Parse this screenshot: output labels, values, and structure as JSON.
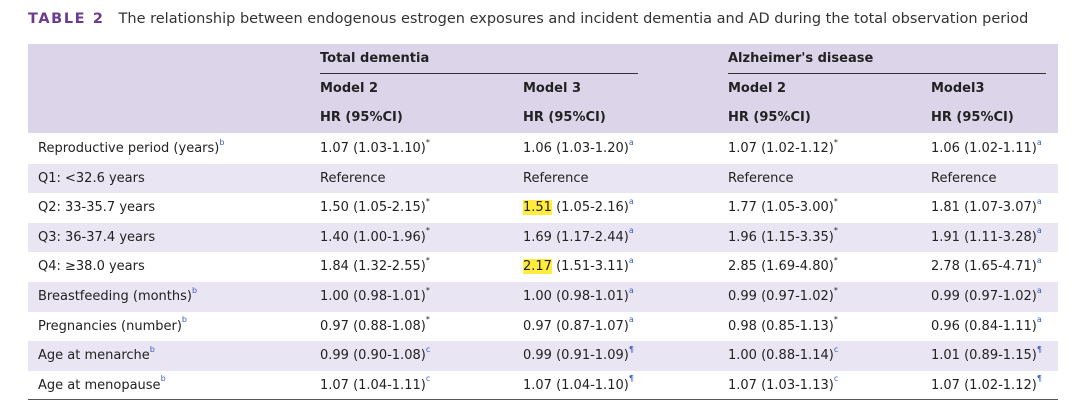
{
  "caption": {
    "label": "TABLE 2",
    "text": "The relationship between endogenous estrogen exposures and incident dementia and AD during the total observation period"
  },
  "header": {
    "groups": [
      "Total dementia",
      "Alzheimer's disease"
    ],
    "models": [
      "Model 2",
      "Model 3",
      "Model 2",
      "Model3"
    ],
    "measures": [
      "HR (95%CI)",
      "HR (95%CI)",
      "HR (95%CI)",
      "HR (95%CI)"
    ]
  },
  "rows": [
    {
      "label": "Reproductive period (years)",
      "label_sup": "b",
      "cells": [
        {
          "pre": "",
          "hl": "",
          "rest": "1.07 (1.03-1.10)",
          "sup": "*"
        },
        {
          "pre": "",
          "hl": "",
          "rest": "1.06 (1.03-1.20)",
          "sup": "a"
        },
        {
          "pre": "",
          "hl": "",
          "rest": "1.07 (1.02-1.12)",
          "sup": "*"
        },
        {
          "pre": "",
          "hl": "",
          "rest": "1.06 (1.02-1.11)",
          "sup": "a"
        }
      ]
    },
    {
      "label": "Q1: <32.6 years",
      "label_sup": "",
      "cells": [
        {
          "pre": "",
          "hl": "",
          "rest": "Reference",
          "sup": ""
        },
        {
          "pre": "",
          "hl": "",
          "rest": "Reference",
          "sup": ""
        },
        {
          "pre": "",
          "hl": "",
          "rest": "Reference",
          "sup": ""
        },
        {
          "pre": "",
          "hl": "",
          "rest": "Reference",
          "sup": ""
        }
      ]
    },
    {
      "label": "Q2: 33-35.7 years",
      "label_sup": "",
      "cells": [
        {
          "pre": "",
          "hl": "",
          "rest": "1.50 (1.05-2.15)",
          "sup": "*"
        },
        {
          "pre": "",
          "hl": "1.51",
          "rest": " (1.05-2.16)",
          "sup": "a"
        },
        {
          "pre": "",
          "hl": "",
          "rest": "1.77 (1.05-3.00)",
          "sup": "*"
        },
        {
          "pre": "",
          "hl": "",
          "rest": "1.81 (1.07-3.07)",
          "sup": "a"
        }
      ]
    },
    {
      "label": "Q3: 36-37.4 years",
      "label_sup": "",
      "cells": [
        {
          "pre": "",
          "hl": "",
          "rest": "1.40 (1.00-1.96)",
          "sup": "*"
        },
        {
          "pre": "",
          "hl": "",
          "rest": "1.69 (1.17-2.44)",
          "sup": "a"
        },
        {
          "pre": "",
          "hl": "",
          "rest": "1.96 (1.15-3.35)",
          "sup": "*"
        },
        {
          "pre": "",
          "hl": "",
          "rest": "1.91 (1.11-3.28)",
          "sup": "a"
        }
      ]
    },
    {
      "label": "Q4: ≥38.0 years",
      "label_sup": "",
      "cells": [
        {
          "pre": "",
          "hl": "",
          "rest": "1.84 (1.32-2.55)",
          "sup": "*"
        },
        {
          "pre": "",
          "hl": "2.17",
          "rest": " (1.51-3.11)",
          "sup": "a"
        },
        {
          "pre": "",
          "hl": "",
          "rest": "2.85 (1.69-4.80)",
          "sup": "*"
        },
        {
          "pre": "",
          "hl": "",
          "rest": "2.78 (1.65-4.71)",
          "sup": "a"
        }
      ]
    },
    {
      "label": "Breastfeeding (months)",
      "label_sup": "b",
      "cells": [
        {
          "pre": "",
          "hl": "",
          "rest": "1.00 (0.98-1.01)",
          "sup": "*"
        },
        {
          "pre": "",
          "hl": "",
          "rest": "1.00 (0.98-1.01)",
          "sup": "a"
        },
        {
          "pre": "",
          "hl": "",
          "rest": "0.99 (0.97-1.02)",
          "sup": "*"
        },
        {
          "pre": "",
          "hl": "",
          "rest": "0.99 (0.97-1.02)",
          "sup": "a"
        }
      ]
    },
    {
      "label": "Pregnancies (number)",
      "label_sup": "b",
      "cells": [
        {
          "pre": "",
          "hl": "",
          "rest": "0.97 (0.88-1.08)",
          "sup": "*"
        },
        {
          "pre": "",
          "hl": "",
          "rest": "0.97 (0.87-1.07)",
          "sup": "a"
        },
        {
          "pre": "",
          "hl": "",
          "rest": "0.98 (0.85-1.13)",
          "sup": "*"
        },
        {
          "pre": "",
          "hl": "",
          "rest": "0.96 (0.84-1.11)",
          "sup": "a"
        }
      ]
    },
    {
      "label": "Age at menarche",
      "label_sup": "b",
      "cells": [
        {
          "pre": "",
          "hl": "",
          "rest": "0.99 (0.90-1.08)",
          "sup": "c"
        },
        {
          "pre": "",
          "hl": "",
          "rest": "0.99 (0.91-1.09)",
          "sup": "¶"
        },
        {
          "pre": "",
          "hl": "",
          "rest": "1.00 (0.88-1.14)",
          "sup": "c"
        },
        {
          "pre": "",
          "hl": "",
          "rest": "1.01 (0.89-1.15)",
          "sup": "¶"
        }
      ]
    },
    {
      "label": "Age at menopause",
      "label_sup": "b",
      "cells": [
        {
          "pre": "",
          "hl": "",
          "rest": "1.07 (1.04-1.11)",
          "sup": "c"
        },
        {
          "pre": "",
          "hl": "",
          "rest": "1.07 (1.04-1.10)",
          "sup": "¶"
        },
        {
          "pre": "",
          "hl": "",
          "rest": "1.07 (1.03-1.13)",
          "sup": "c"
        },
        {
          "pre": "",
          "hl": "",
          "rest": "1.07 (1.02-1.12)",
          "sup": "¶"
        }
      ]
    }
  ]
}
